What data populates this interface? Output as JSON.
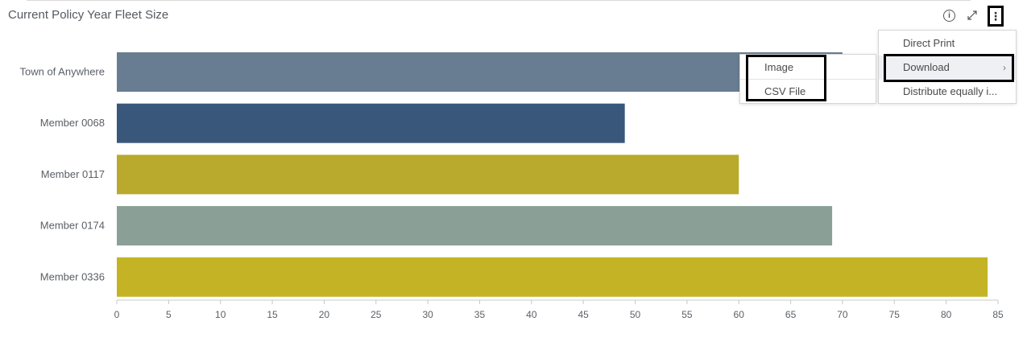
{
  "header": {
    "title": "Current Policy Year Fleet Size",
    "info_icon": "info-icon",
    "expand_icon": "expand-icon",
    "more_icon": "more-vertical-icon"
  },
  "menu": {
    "items": [
      "Direct Print",
      "Download",
      "Distribute equally i..."
    ],
    "submenu_arrow": "›"
  },
  "submenu": {
    "items": [
      "Image",
      "CSV File"
    ]
  },
  "chart_data": {
    "type": "bar",
    "orientation": "horizontal",
    "title": "Current Policy Year Fleet Size",
    "categories": [
      "Town of Anywhere",
      "Member 0068",
      "Member 0117",
      "Member 0174",
      "Member 0336"
    ],
    "values": [
      70,
      49,
      60,
      69,
      84
    ],
    "colors": [
      "#687d92",
      "#39577b",
      "#b9a92c",
      "#8aa097",
      "#c4b425"
    ],
    "xlim": [
      0,
      85
    ],
    "xticks": [
      0,
      5,
      10,
      15,
      20,
      25,
      30,
      35,
      40,
      45,
      50,
      55,
      60,
      65,
      70,
      75,
      80,
      85
    ],
    "xlabel": "",
    "ylabel": "",
    "grid": false,
    "legend": "none"
  }
}
